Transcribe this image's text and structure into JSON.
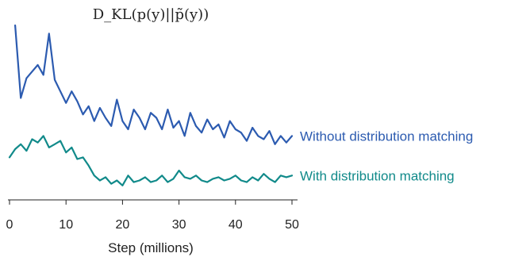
{
  "chart_data": {
    "type": "line",
    "title": "D_KL(p(y)||p̃(y))",
    "xlabel": "Step (millions)",
    "ylabel": "",
    "xlim": [
      0,
      50
    ],
    "ylim": [
      0,
      1
    ],
    "xticks": [
      0,
      10,
      20,
      30,
      40,
      50
    ],
    "yaxis_visible": false,
    "grid": false,
    "legend": "inline labels at right end of each line",
    "series": [
      {
        "name": "Without distribution matching",
        "color": "#2c5bb0",
        "x": [
          1,
          2,
          3,
          4,
          5,
          6,
          7,
          8,
          9,
          10,
          11,
          12,
          13,
          14,
          15,
          16,
          17,
          18,
          19,
          20,
          21,
          22,
          23,
          24,
          25,
          26,
          27,
          28,
          29,
          30,
          31,
          32,
          33,
          34,
          35,
          36,
          37,
          38,
          39,
          40,
          41,
          42,
          43,
          44,
          45,
          46,
          47,
          48,
          49,
          50
        ],
        "y": [
          1.0,
          0.56,
          0.68,
          0.72,
          0.76,
          0.7,
          0.95,
          0.67,
          0.6,
          0.53,
          0.6,
          0.54,
          0.46,
          0.51,
          0.42,
          0.5,
          0.44,
          0.39,
          0.55,
          0.42,
          0.37,
          0.49,
          0.44,
          0.37,
          0.47,
          0.44,
          0.37,
          0.49,
          0.38,
          0.42,
          0.33,
          0.47,
          0.39,
          0.35,
          0.43,
          0.37,
          0.4,
          0.32,
          0.42,
          0.37,
          0.35,
          0.3,
          0.38,
          0.33,
          0.31,
          0.36,
          0.28,
          0.33,
          0.29,
          0.33
        ]
      },
      {
        "name": "With distribution matching",
        "color": "#118a8a",
        "x": [
          0,
          1,
          2,
          3,
          4,
          5,
          6,
          7,
          8,
          9,
          10,
          11,
          12,
          13,
          14,
          15,
          16,
          17,
          18,
          19,
          20,
          21,
          22,
          23,
          24,
          25,
          26,
          27,
          28,
          29,
          30,
          31,
          32,
          33,
          34,
          35,
          36,
          37,
          38,
          39,
          40,
          41,
          42,
          43,
          44,
          45,
          46,
          47,
          48,
          49,
          50
        ],
        "y": [
          0.2,
          0.25,
          0.28,
          0.24,
          0.31,
          0.29,
          0.33,
          0.26,
          0.28,
          0.3,
          0.23,
          0.26,
          0.19,
          0.2,
          0.15,
          0.09,
          0.06,
          0.08,
          0.04,
          0.06,
          0.03,
          0.09,
          0.05,
          0.06,
          0.08,
          0.05,
          0.06,
          0.09,
          0.05,
          0.07,
          0.12,
          0.08,
          0.07,
          0.09,
          0.06,
          0.05,
          0.07,
          0.08,
          0.06,
          0.07,
          0.09,
          0.06,
          0.05,
          0.08,
          0.06,
          0.1,
          0.07,
          0.05,
          0.09,
          0.08,
          0.09
        ]
      }
    ]
  }
}
